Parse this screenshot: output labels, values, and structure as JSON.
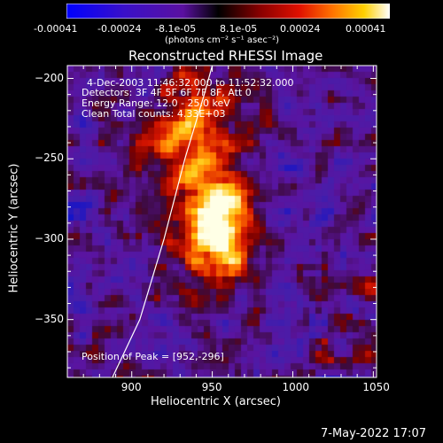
{
  "colorbar": {
    "tick_labels": [
      "-0.00041",
      "-0.00024",
      "-8.1e-05",
      "8.1e-05",
      "0.00024",
      "0.00041"
    ],
    "units_label": "(photons cm⁻² s⁻¹ asec⁻²)",
    "colors": [
      "#0000ff",
      "#3a00a8",
      "#5a00a8",
      "#000000",
      "#6a0000",
      "#c80000",
      "#ff6000",
      "#ffc000",
      "#ffff80",
      "#ffffff"
    ]
  },
  "chart_data": {
    "type": "heatmap",
    "title": "Reconstructed RHESSI Image",
    "xlabel": "Heliocentric X (arcsec)",
    "ylabel": "Heliocentric Y (arcsec)",
    "xlim": [
      860,
      1052
    ],
    "ylim": [
      -386,
      -192
    ],
    "x_ticks": [
      900,
      950,
      1000,
      1050
    ],
    "y_ticks": [
      -200,
      -250,
      -300,
      -350
    ],
    "peak": {
      "x": 952,
      "y": -296
    },
    "limb_curve": [
      [
        888,
        -386
      ],
      [
        905,
        -350
      ],
      [
        920,
        -300
      ],
      [
        933,
        -250
      ],
      [
        945,
        -210
      ],
      [
        950,
        -192
      ]
    ],
    "annotations": [
      "4-Dec-2003 11:46:32.000 to 11:52:32.000",
      "Detectors: 3F 4F 5F 6F 7F 8F, Att 0",
      "Energy Range: 12.0 - 25.0 keV",
      "Clean    Total counts: 4.33E+03",
      "Position of Peak = [952,-296]"
    ]
  },
  "footer": {
    "date": "7-May-2022 17:07"
  }
}
